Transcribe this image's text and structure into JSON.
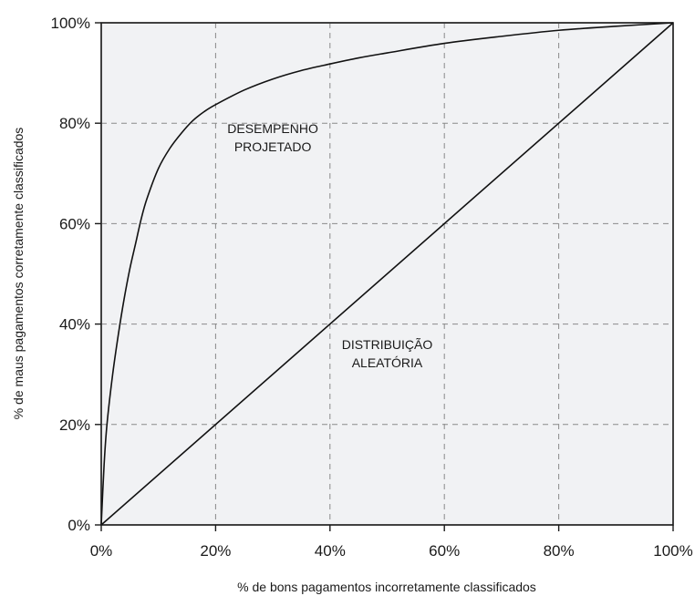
{
  "chart_data": {
    "type": "line",
    "xlabel": "% de bons pagamentos incorretamente classificados",
    "ylabel": "% de maus pagamentos corretamente classificados",
    "xlim": [
      0,
      100
    ],
    "ylim": [
      0,
      100
    ],
    "x_ticks": [
      "0%",
      "20%",
      "40%",
      "60%",
      "80%",
      "100%"
    ],
    "y_ticks": [
      "0%",
      "20%",
      "40%",
      "60%",
      "80%",
      "100%"
    ],
    "grid": true,
    "series": [
      {
        "label": "DESEMPENHO PROJETADO",
        "x": [
          0,
          0.5,
          1,
          2,
          3,
          4,
          5,
          6,
          7,
          8,
          10,
          12,
          14,
          16,
          18,
          20,
          25,
          30,
          35,
          40,
          45,
          50,
          60,
          70,
          80,
          90,
          100
        ],
        "y": [
          0,
          12,
          20,
          30,
          38,
          45,
          51,
          56,
          61,
          65,
          71,
          75,
          78,
          80.5,
          82.3,
          83.7,
          86.6,
          88.8,
          90.5,
          91.8,
          93,
          94,
          95.9,
          97.3,
          98.5,
          99.3,
          100
        ]
      },
      {
        "label": "DISTRIBUIÇÃO ALEATÓRIA",
        "x": [
          0,
          100
        ],
        "y": [
          0,
          100
        ]
      }
    ],
    "annotations": [
      {
        "lines": [
          "DESEMPENHO",
          "PROJETADO"
        ],
        "x": 30,
        "y": 78
      },
      {
        "lines": [
          "DISTRIBUIÇÃO",
          "ALEATÓRIA"
        ],
        "x": 50,
        "y": 35
      }
    ]
  }
}
